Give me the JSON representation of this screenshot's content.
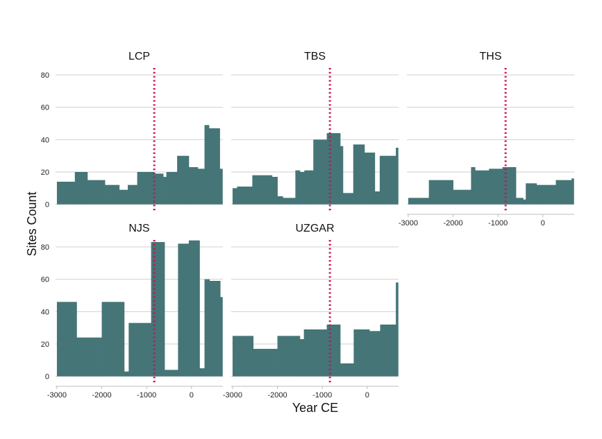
{
  "chart_data": {
    "type": "bar",
    "xlabel": "Year CE",
    "ylabel": "Sites Count",
    "xlim": [
      -3030,
      700
    ],
    "ylim": [
      -4,
      86
    ],
    "x_ticks": [
      "-3000",
      "-2000",
      "-1000",
      "0"
    ],
    "y_ticks": [
      "0",
      "20",
      "40",
      "60",
      "80"
    ],
    "bar_color": "#457577",
    "reference_line": {
      "x": -830,
      "color": "#cc1155",
      "style": "dotted"
    },
    "panels": [
      {
        "title": "LCP",
        "bins": [
          {
            "x0": -3000,
            "x1": -2600,
            "y": 14
          },
          {
            "x0": -2600,
            "x1": -2320,
            "y": 20
          },
          {
            "x0": -2320,
            "x1": -1930,
            "y": 15
          },
          {
            "x0": -1930,
            "x1": -1610,
            "y": 12
          },
          {
            "x0": -1610,
            "x1": -1420,
            "y": 9
          },
          {
            "x0": -1420,
            "x1": -1210,
            "y": 12
          },
          {
            "x0": -1210,
            "x1": -840,
            "y": 20
          },
          {
            "x0": -840,
            "x1": -630,
            "y": 19
          },
          {
            "x0": -630,
            "x1": -560,
            "y": 17
          },
          {
            "x0": -560,
            "x1": -320,
            "y": 20
          },
          {
            "x0": -320,
            "x1": -60,
            "y": 30
          },
          {
            "x0": -60,
            "x1": 140,
            "y": 23
          },
          {
            "x0": 140,
            "x1": 290,
            "y": 22
          },
          {
            "x0": 290,
            "x1": 390,
            "y": 49
          },
          {
            "x0": 390,
            "x1": 630,
            "y": 47
          },
          {
            "x0": 630,
            "x1": 690,
            "y": 22
          }
        ]
      },
      {
        "title": "TBS",
        "bins": [
          {
            "x0": -3000,
            "x1": -2900,
            "y": 10
          },
          {
            "x0": -2900,
            "x1": -2560,
            "y": 11
          },
          {
            "x0": -2560,
            "x1": -2120,
            "y": 18
          },
          {
            "x0": -2120,
            "x1": -2000,
            "y": 17
          },
          {
            "x0": -2000,
            "x1": -1880,
            "y": 5
          },
          {
            "x0": -1880,
            "x1": -1600,
            "y": 4
          },
          {
            "x0": -1600,
            "x1": -1500,
            "y": 21
          },
          {
            "x0": -1500,
            "x1": -1400,
            "y": 20
          },
          {
            "x0": -1400,
            "x1": -1200,
            "y": 21
          },
          {
            "x0": -1200,
            "x1": -900,
            "y": 40
          },
          {
            "x0": -900,
            "x1": -600,
            "y": 44
          },
          {
            "x0": -600,
            "x1": -540,
            "y": 36
          },
          {
            "x0": -540,
            "x1": -310,
            "y": 7
          },
          {
            "x0": -310,
            "x1": -60,
            "y": 37
          },
          {
            "x0": -60,
            "x1": 170,
            "y": 32
          },
          {
            "x0": 170,
            "x1": 280,
            "y": 8
          },
          {
            "x0": 280,
            "x1": 640,
            "y": 30
          },
          {
            "x0": 640,
            "x1": 690,
            "y": 35
          }
        ]
      },
      {
        "title": "THS",
        "bins": [
          {
            "x0": -3000,
            "x1": -2540,
            "y": 4
          },
          {
            "x0": -2540,
            "x1": -2000,
            "y": 15
          },
          {
            "x0": -2000,
            "x1": -1600,
            "y": 9
          },
          {
            "x0": -1600,
            "x1": -1510,
            "y": 23
          },
          {
            "x0": -1510,
            "x1": -1200,
            "y": 21
          },
          {
            "x0": -1200,
            "x1": -900,
            "y": 22
          },
          {
            "x0": -900,
            "x1": -600,
            "y": 23
          },
          {
            "x0": -600,
            "x1": -440,
            "y": 4
          },
          {
            "x0": -440,
            "x1": -380,
            "y": 3
          },
          {
            "x0": -380,
            "x1": -140,
            "y": 13
          },
          {
            "x0": -140,
            "x1": 290,
            "y": 12
          },
          {
            "x0": 290,
            "x1": 640,
            "y": 15
          },
          {
            "x0": 640,
            "x1": 690,
            "y": 16
          }
        ]
      },
      {
        "title": "NJS",
        "bins": [
          {
            "x0": -3000,
            "x1": -2560,
            "y": 46
          },
          {
            "x0": -2560,
            "x1": -2000,
            "y": 24
          },
          {
            "x0": -2000,
            "x1": -1500,
            "y": 46
          },
          {
            "x0": -1500,
            "x1": -1400,
            "y": 3
          },
          {
            "x0": -1400,
            "x1": -900,
            "y": 33
          },
          {
            "x0": -900,
            "x1": -600,
            "y": 83
          },
          {
            "x0": -600,
            "x1": -300,
            "y": 4
          },
          {
            "x0": -300,
            "x1": -60,
            "y": 82
          },
          {
            "x0": -60,
            "x1": 180,
            "y": 84
          },
          {
            "x0": 180,
            "x1": 290,
            "y": 5
          },
          {
            "x0": 290,
            "x1": 400,
            "y": 60
          },
          {
            "x0": 400,
            "x1": 640,
            "y": 59
          },
          {
            "x0": 640,
            "x1": 690,
            "y": 49
          }
        ]
      },
      {
        "title": "UZGAR",
        "bins": [
          {
            "x0": -3000,
            "x1": -2540,
            "y": 25
          },
          {
            "x0": -2540,
            "x1": -2000,
            "y": 17
          },
          {
            "x0": -2000,
            "x1": -1500,
            "y": 25
          },
          {
            "x0": -1500,
            "x1": -1410,
            "y": 23
          },
          {
            "x0": -1410,
            "x1": -900,
            "y": 29
          },
          {
            "x0": -900,
            "x1": -600,
            "y": 32
          },
          {
            "x0": -600,
            "x1": -300,
            "y": 8
          },
          {
            "x0": -300,
            "x1": 50,
            "y": 29
          },
          {
            "x0": 50,
            "x1": 290,
            "y": 28
          },
          {
            "x0": 290,
            "x1": 640,
            "y": 32
          },
          {
            "x0": 640,
            "x1": 690,
            "y": 58
          }
        ]
      }
    ]
  }
}
